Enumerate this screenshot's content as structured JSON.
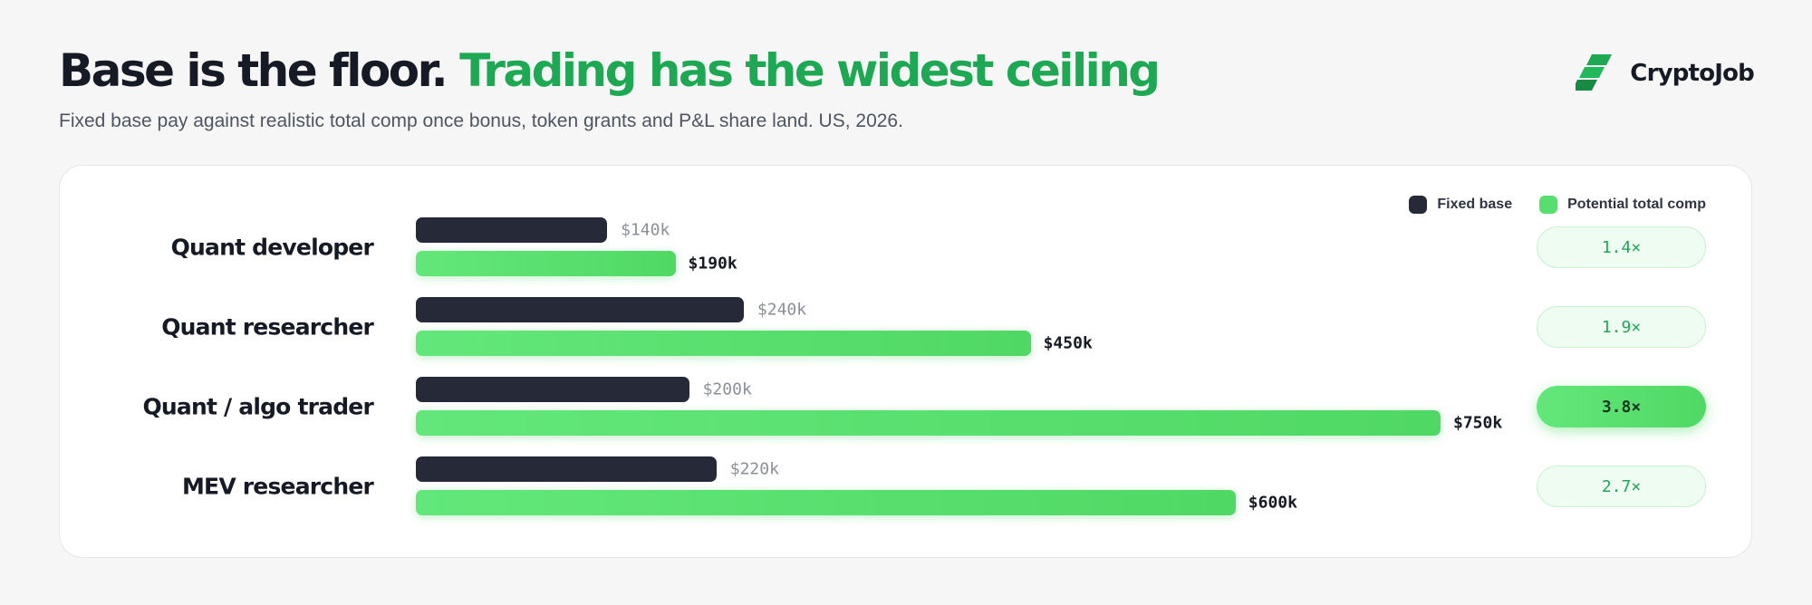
{
  "header": {
    "title_main": "Base is the floor.",
    "title_accent": "Trading has the widest ceiling",
    "subtitle": "Fixed base pay against realistic total comp once bonus, token grants and P&L share land. US, 2026."
  },
  "brand": {
    "name": "CryptoJob",
    "icon": "cryptojob-logo-icon",
    "color": "#1fa853"
  },
  "legend": {
    "base_label": "Fixed base",
    "total_label": "Potential total comp"
  },
  "colors": {
    "base": "#262a38",
    "total": "#58de6e",
    "accent": "#1fa853"
  },
  "chart_data": {
    "type": "bar",
    "orientation": "horizontal",
    "categories": [
      "Quant developer",
      "Quant researcher",
      "Quant / algo trader",
      "MEV researcher"
    ],
    "series": [
      {
        "name": "Fixed base",
        "values": [
          140,
          240,
          200,
          220
        ],
        "labels": [
          "$140k",
          "$240k",
          "$200k",
          "$220k"
        ]
      },
      {
        "name": "Potential total comp",
        "values": [
          190,
          450,
          750,
          600
        ],
        "labels": [
          "$190k",
          "$450k",
          "$750k",
          "$600k"
        ]
      }
    ],
    "multipliers": [
      "1.4×",
      "1.9×",
      "3.8×",
      "2.7×"
    ],
    "highlight_index": 2,
    "unit": "k USD",
    "xlim": [
      0,
      750
    ],
    "legend_position": "top-right",
    "grid": false
  }
}
